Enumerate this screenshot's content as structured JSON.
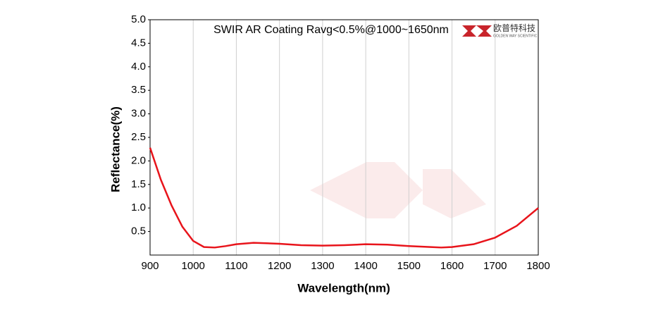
{
  "chart_data": {
    "type": "line",
    "title": "SWIR AR Coating Ravg<0.5%@1000~1650nm",
    "x_label": "Wavelength(nm)",
    "y_label": "Reflectance(%)",
    "annotations": [
      "欧普特科技",
      "GOLDEN WAY SCIENTIFIC"
    ],
    "x": [
      900,
      925,
      950,
      975,
      1000,
      1025,
      1050,
      1075,
      1100,
      1140,
      1200,
      1250,
      1300,
      1350,
      1400,
      1450,
      1500,
      1550,
      1575,
      1600,
      1650,
      1700,
      1750,
      1800
    ],
    "series": [
      {
        "name": "Reflectance",
        "color": "#e8141b",
        "values": [
          2.28,
          1.6,
          1.05,
          0.6,
          0.3,
          0.17,
          0.16,
          0.19,
          0.23,
          0.26,
          0.24,
          0.21,
          0.2,
          0.21,
          0.23,
          0.22,
          0.19,
          0.17,
          0.16,
          0.17,
          0.23,
          0.37,
          0.62,
          1.0
        ]
      }
    ],
    "xlim": [
      900,
      1800
    ],
    "xticks": [
      900,
      1000,
      1100,
      1200,
      1300,
      1400,
      1500,
      1600,
      1700,
      1800
    ],
    "ylim": [
      0,
      5
    ],
    "yticks": [
      0.5,
      {
        "value": 1,
        "label": "1.0"
      },
      1.5,
      {
        "value": 2,
        "label": "2.0"
      },
      2.5,
      {
        "value": 3,
        "label": "3.0"
      },
      3.5,
      {
        "value": 4,
        "label": "4.0"
      },
      4.5,
      {
        "value": 5,
        "label": "5.0"
      }
    ],
    "grid": "x"
  }
}
